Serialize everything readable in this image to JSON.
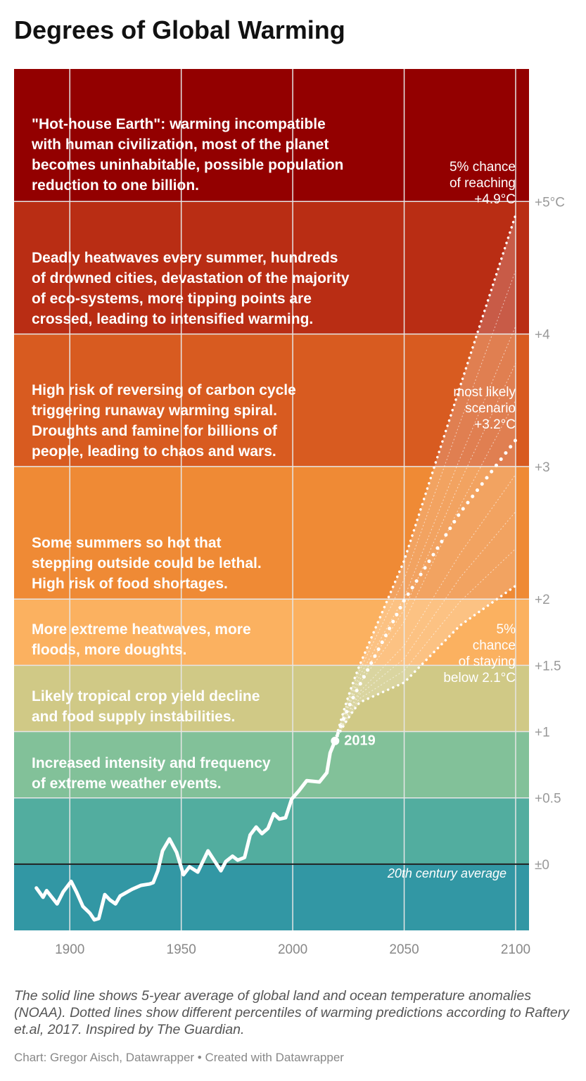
{
  "chart_data": {
    "type": "line",
    "title": "Degrees of Global Warming",
    "xlim": [
      1875,
      2106
    ],
    "ylim": [
      -0.5,
      6
    ],
    "x_ticks": [
      1900,
      1950,
      2000,
      2050,
      2100
    ],
    "x_tick_labels": [
      "1900",
      "1950",
      "2000",
      "2050",
      "2100"
    ],
    "y_ticks": [
      0,
      0.5,
      1,
      1.5,
      2,
      3,
      4,
      5
    ],
    "y_tick_labels": [
      "±0",
      "+0.5",
      "+1",
      "+1.5",
      "+2",
      "+3",
      "+4",
      "+5°C"
    ],
    "grid": true,
    "bands": [
      {
        "from": -0.5,
        "to": 0,
        "color": "#3297a4",
        "text": ""
      },
      {
        "from": 0,
        "to": 0.5,
        "color": "#52ad9f",
        "text": ""
      },
      {
        "from": 0.5,
        "to": 1,
        "color": "#82c199",
        "text": "Increased intensity and frequency\nof extreme weather events."
      },
      {
        "from": 1,
        "to": 1.5,
        "color": "#d0c986",
        "text": "Likely tropical crop yield decline\nand food supply instabilities."
      },
      {
        "from": 1.5,
        "to": 2,
        "color": "#fbb160",
        "text": "More extreme heatwaves, more\nfloods, more doughts."
      },
      {
        "from": 2,
        "to": 3,
        "color": "#ef8a35",
        "text": "Some summers so hot that\nstepping outside could be lethal.\nHigh risk of food shortages."
      },
      {
        "from": 3,
        "to": 4,
        "color": "#d85b20",
        "text": "High risk of reversing of carbon cycle\ntriggering runaway warming spiral.\nDroughts and famine for billions of\npeople, leading to chaos and wars."
      },
      {
        "from": 4,
        "to": 5,
        "color": "#b92d14",
        "text": "Deadly heatwaves every summer, hundreds\nof drowned cities, devastation of the majority\nof eco-systems, more tipping points are\ncrossed, leading to intensified warming."
      },
      {
        "from": 5,
        "to": 6,
        "color": "#930000",
        "text": "\"Hot-house Earth\": warming incompatible\nwith human civilization, most of the planet\nbecomes uninhabitable, possible population\nreduction to one billion."
      }
    ],
    "baseline_label": "20th century average",
    "historical": {
      "x": [
        1885,
        1888,
        1889.6,
        1894.3,
        1897,
        1900.6,
        1903,
        1905.9,
        1909,
        1911,
        1913,
        1915.7,
        1918,
        1920.5,
        1922.6,
        1927.9,
        1932,
        1935.8,
        1937.4,
        1939.5,
        1941.6,
        1944.7,
        1947.9,
        1951,
        1953.7,
        1957.4,
        1962,
        1967.8,
        1970,
        1973,
        1975.3,
        1978.4,
        1980.9,
        1983.6,
        1986.2,
        1988.9,
        1991.5,
        1994,
        1996.8,
        1999.5,
        2002.6,
        2006.3,
        2012,
        2015.3,
        2016.8,
        2019
      ],
      "y": [
        -0.18,
        -0.25,
        -0.2,
        -0.3,
        -0.21,
        -0.13,
        -0.21,
        -0.32,
        -0.37,
        -0.42,
        -0.41,
        -0.23,
        -0.27,
        -0.3,
        -0.24,
        -0.19,
        -0.16,
        -0.15,
        -0.14,
        -0.05,
        0.1,
        0.19,
        0.09,
        -0.08,
        -0.02,
        -0.06,
        0.1,
        -0.05,
        0.02,
        0.06,
        0.03,
        0.05,
        0.22,
        0.28,
        0.23,
        0.27,
        0.38,
        0.34,
        0.35,
        0.49,
        0.55,
        0.63,
        0.62,
        0.69,
        0.84,
        0.93
      ]
    },
    "marker": {
      "x": 2019,
      "y": 0.93,
      "label": "2019"
    },
    "projection_x": [
      2019,
      2030,
      2050,
      2075,
      2100
    ],
    "projections_key": [
      {
        "values": [
          0.93,
          1.22,
          1.37,
          1.8,
          2.1
        ],
        "label": "5%\nchance\nof staying\nbelow 2.1°C"
      },
      {
        "values": [
          0.93,
          1.35,
          1.99,
          2.65,
          3.2
        ],
        "label": "most likely\nscenario\n+3.2°C"
      },
      {
        "values": [
          0.93,
          1.5,
          2.29,
          3.6,
          4.9
        ],
        "label": "5% chance\nof reaching\n+4.9°C"
      }
    ],
    "projections_other": [
      [
        0.93,
        1.25,
        1.46,
        1.98,
        2.38
      ],
      [
        0.93,
        1.28,
        1.55,
        2.16,
        2.66
      ],
      [
        0.93,
        1.3,
        1.65,
        2.34,
        2.94
      ],
      [
        0.93,
        1.36,
        1.83,
        2.7,
        3.5
      ],
      [
        0.93,
        1.39,
        1.92,
        2.88,
        3.78
      ],
      [
        0.93,
        1.42,
        2.01,
        3.06,
        4.06
      ],
      [
        0.93,
        1.46,
        2.15,
        3.33,
        4.48
      ]
    ]
  },
  "caption": "The solid line shows 5-year average of global land and ocean temperature anomalies (NOAA). Dotted lines show different percentiles of warming predictions according to Raftery et.al, 2017. Inspired by The Guardian.",
  "credit": "Chart: Gregor Aisch, Datawrapper • Created with Datawrapper"
}
